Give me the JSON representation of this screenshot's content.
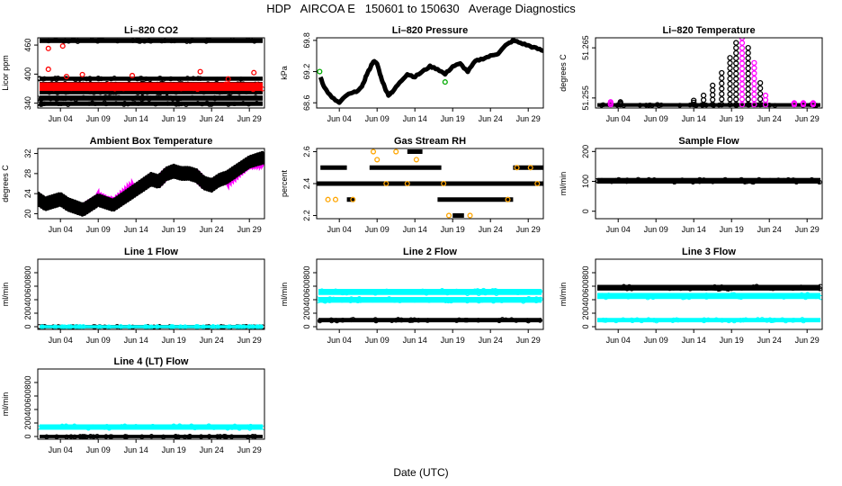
{
  "header": {
    "title": "HDP   AIRCOA E   150601 to 150630   Average Diagnostics",
    "xlabel": "Date (UTC)"
  },
  "colors": {
    "black": "#000000",
    "red": "#ff0000",
    "magenta": "#ff00ff",
    "cyan": "#00ffff",
    "orange": "#ffa500",
    "green": "#00aa00"
  },
  "x_ticks": [
    "Jun 04",
    "Jun 09",
    "Jun 14",
    "Jun 19",
    "Jun 24",
    "Jun 29"
  ],
  "chart_data": [
    {
      "type": "scatter",
      "title": "Li–820 CO2",
      "ylabel": "Licor ppm",
      "yticks": [
        "340",
        "400",
        "460"
      ],
      "ylim": [
        330,
        475
      ],
      "xlim": [
        1,
        31
      ],
      "series": [
        {
          "name": "band1",
          "color": "black",
          "band": [
            467,
            471
          ]
        },
        {
          "name": "band2",
          "color": "black",
          "band": [
            389,
            392
          ]
        },
        {
          "name": "band3",
          "color": "black",
          "band": [
            378,
            381
          ]
        },
        {
          "name": "band4",
          "color": "black",
          "band": [
            361,
            364
          ]
        },
        {
          "name": "band5",
          "color": "black",
          "band": [
            348,
            353
          ]
        },
        {
          "name": "band6",
          "color": "black",
          "band": [
            337,
            341
          ]
        },
        {
          "name": "main",
          "color": "red",
          "band": [
            368,
            380
          ]
        }
      ],
      "outliers": {
        "color": "red",
        "points": [
          [
            2.4,
            453
          ],
          [
            4.3,
            458
          ],
          [
            2.4,
            410
          ],
          [
            4.8,
            395
          ],
          [
            6.9,
            399
          ],
          [
            13.5,
            397
          ],
          [
            22.5,
            405
          ],
          [
            29.6,
            403
          ],
          [
            26.2,
            390
          ]
        ]
      }
    },
    {
      "type": "line",
      "title": "Li–820 Pressure",
      "ylabel": "kPa",
      "yticks": [
        "68.6",
        "69.2",
        "69.8"
      ],
      "ylim": [
        68.5,
        69.85
      ],
      "xlim": [
        1,
        31
      ],
      "series": [
        {
          "name": "pressure",
          "color": "black",
          "x": [
            1.5,
            2,
            3,
            4,
            5,
            6,
            7,
            7.5,
            8,
            8.5,
            9,
            9.5,
            10,
            10.5,
            11,
            12,
            13,
            14,
            15,
            16,
            17,
            18,
            19,
            20,
            21,
            22,
            23,
            24,
            25,
            26,
            27,
            28,
            29,
            30,
            31
          ],
          "y": [
            69.1,
            68.9,
            68.7,
            68.6,
            68.75,
            68.8,
            68.9,
            69.1,
            69.25,
            69.4,
            69.35,
            69.1,
            68.9,
            68.75,
            68.8,
            69.0,
            69.15,
            69.1,
            69.2,
            69.3,
            69.25,
            69.15,
            69.3,
            69.35,
            69.2,
            69.4,
            69.45,
            69.5,
            69.55,
            69.7,
            69.8,
            69.75,
            69.7,
            69.65,
            69.6
          ]
        }
      ],
      "outliers": {
        "color": "green",
        "points": [
          [
            1.4,
            69.2
          ],
          [
            18.0,
            69.0
          ]
        ]
      }
    },
    {
      "type": "scatter",
      "title": "Li–820 Temperature",
      "ylabel": "degrees C",
      "yticks": [
        "51.255",
        "51.265"
      ],
      "ylim": [
        51.253,
        51.267
      ],
      "xlim": [
        1,
        31
      ],
      "series": [
        {
          "name": "base",
          "color": "black",
          "band": [
            51.2535,
            51.2537
          ]
        }
      ],
      "columns": [
        {
          "x": 3.0,
          "top": 51.2542,
          "color": "magenta"
        },
        {
          "x": 4.3,
          "top": 51.2542,
          "color": "black"
        },
        {
          "x": 14.0,
          "top": 51.2545,
          "color": "black"
        },
        {
          "x": 15.3,
          "top": 51.2555,
          "color": "black"
        },
        {
          "x": 16.5,
          "top": 51.2575,
          "color": "black"
        },
        {
          "x": 17.7,
          "top": 51.26,
          "color": "black"
        },
        {
          "x": 18.8,
          "top": 51.263,
          "color": "black"
        },
        {
          "x": 19.6,
          "top": 51.266,
          "color": "black"
        },
        {
          "x": 20.4,
          "top": 51.267,
          "color": "magenta"
        },
        {
          "x": 21.2,
          "top": 51.265,
          "color": "black"
        },
        {
          "x": 22.0,
          "top": 51.262,
          "color": "magenta"
        },
        {
          "x": 22.8,
          "top": 51.258,
          "color": "black"
        },
        {
          "x": 23.5,
          "top": 51.2555,
          "color": "magenta"
        },
        {
          "x": 27.3,
          "top": 51.254,
          "color": "magenta"
        },
        {
          "x": 28.5,
          "top": 51.254,
          "color": "magenta"
        },
        {
          "x": 29.8,
          "top": 51.254,
          "color": "magenta"
        }
      ]
    },
    {
      "type": "line",
      "title": "Ambient Box Temperature",
      "ylabel": "degrees C",
      "yticks": [
        "20",
        "24",
        "28",
        "32"
      ],
      "ylim": [
        19,
        33
      ],
      "xlim": [
        1,
        31
      ],
      "series": [
        {
          "name": "box_temp",
          "color": "black",
          "x": [
            1,
            2,
            3,
            4,
            5,
            6,
            7,
            8,
            9,
            10,
            11,
            12,
            13,
            14,
            15,
            16,
            17,
            18,
            19,
            20,
            21,
            22,
            23,
            24,
            25,
            26,
            27,
            28,
            29,
            30,
            31
          ],
          "y": [
            23,
            22,
            22.5,
            23,
            22,
            21.5,
            21,
            22,
            23,
            22.5,
            22,
            23,
            24,
            25,
            26,
            27,
            26.5,
            28,
            28.5,
            28,
            28,
            27.5,
            26,
            25.5,
            26.5,
            27,
            28,
            29,
            30,
            30.5,
            31
          ],
          "amplitude": 1.3
        }
      ],
      "overlay_color": "magenta"
    },
    {
      "type": "scatter",
      "title": "Gas Stream RH",
      "ylabel": "percent",
      "yticks": [
        "2.2",
        "2.4",
        "2.6"
      ],
      "ylim": [
        2.18,
        2.62
      ],
      "xlim": [
        1,
        31
      ],
      "series": [
        {
          "name": "rh_24",
          "color": "black",
          "level": 2.4,
          "ranges": [
            [
              1,
              31
            ]
          ]
        },
        {
          "name": "rh_25",
          "color": "black",
          "level": 2.5,
          "ranges": [
            [
              1.5,
              5
            ],
            [
              8,
              17.5
            ],
            [
              27,
              31
            ]
          ]
        },
        {
          "name": "rh_23",
          "color": "black",
          "level": 2.3,
          "ranges": [
            [
              17,
              27
            ],
            [
              5,
              6
            ]
          ]
        },
        {
          "name": "rh_26",
          "color": "black",
          "level": 2.6,
          "ranges": [
            [
              13,
              15
            ]
          ]
        },
        {
          "name": "rh_22",
          "color": "black",
          "level": 2.2,
          "ranges": [
            [
              19,
              20.5
            ]
          ]
        }
      ],
      "outliers": {
        "color": "orange",
        "points": [
          [
            2.5,
            2.3
          ],
          [
            3.5,
            2.3
          ],
          [
            5.8,
            2.3
          ],
          [
            8.5,
            2.6
          ],
          [
            9.0,
            2.55
          ],
          [
            10.2,
            2.4
          ],
          [
            11.5,
            2.6
          ],
          [
            13.0,
            2.4
          ],
          [
            14.2,
            2.55
          ],
          [
            17.8,
            2.4
          ],
          [
            18.5,
            2.2
          ],
          [
            21.3,
            2.2
          ],
          [
            26.3,
            2.3
          ],
          [
            27.5,
            2.5
          ],
          [
            29.3,
            2.5
          ],
          [
            30.2,
            2.4
          ]
        ]
      }
    },
    {
      "type": "line",
      "title": "Sample Flow",
      "ylabel": "ml/min",
      "yticks": [
        "0",
        "100",
        "200"
      ],
      "ylim": [
        -25,
        210
      ],
      "xlim": [
        1,
        31
      ],
      "series": [
        {
          "name": "sample_flow",
          "color": "black",
          "band": [
            97,
            107
          ]
        }
      ]
    },
    {
      "type": "line",
      "title": "Line 1 Flow",
      "ylabel": "ml/min",
      "yticks": [
        "0",
        "200",
        "400",
        "600",
        "800"
      ],
      "ylim": [
        -40,
        1000
      ],
      "xlim": [
        1,
        31
      ],
      "series": [
        {
          "name": "line1_black",
          "color": "black",
          "band": [
            -5,
            5
          ]
        },
        {
          "name": "line1_cyan",
          "color": "cyan",
          "band": [
            -3,
            3
          ]
        }
      ]
    },
    {
      "type": "line",
      "title": "Line 2 Flow",
      "ylabel": "ml/min",
      "yticks": [
        "0",
        "200",
        "400",
        "600",
        "800"
      ],
      "ylim": [
        -40,
        1000
      ],
      "xlim": [
        1,
        31
      ],
      "series": [
        {
          "name": "line2_cyan_high",
          "color": "cyan",
          "band": [
            490,
            540
          ]
        },
        {
          "name": "line2_cyan_low",
          "color": "cyan",
          "band": [
            375,
            420
          ]
        },
        {
          "name": "line2_black",
          "color": "black",
          "band": [
            85,
            110
          ]
        }
      ]
    },
    {
      "type": "line",
      "title": "Line 3 Flow",
      "ylabel": "ml/min",
      "yticks": [
        "0",
        "200",
        "400",
        "600",
        "800"
      ],
      "ylim": [
        -40,
        1000
      ],
      "xlim": [
        1,
        31
      ],
      "series": [
        {
          "name": "line3_black",
          "color": "black",
          "band": [
            555,
            600
          ]
        },
        {
          "name": "line3_cyan_high",
          "color": "cyan",
          "band": [
            430,
            480
          ]
        },
        {
          "name": "line3_cyan_low",
          "color": "cyan",
          "band": [
            85,
            110
          ]
        }
      ]
    },
    {
      "type": "line",
      "title": "Line 4 (LT) Flow",
      "ylabel": "ml/min",
      "yticks": [
        "0",
        "200",
        "400",
        "600",
        "800"
      ],
      "ylim": [
        -40,
        1000
      ],
      "xlim": [
        1,
        31
      ],
      "series": [
        {
          "name": "line4_cyan",
          "color": "cyan",
          "band": [
            120,
            160
          ]
        },
        {
          "name": "line4_black",
          "color": "black",
          "band": [
            -5,
            5
          ]
        }
      ]
    }
  ]
}
